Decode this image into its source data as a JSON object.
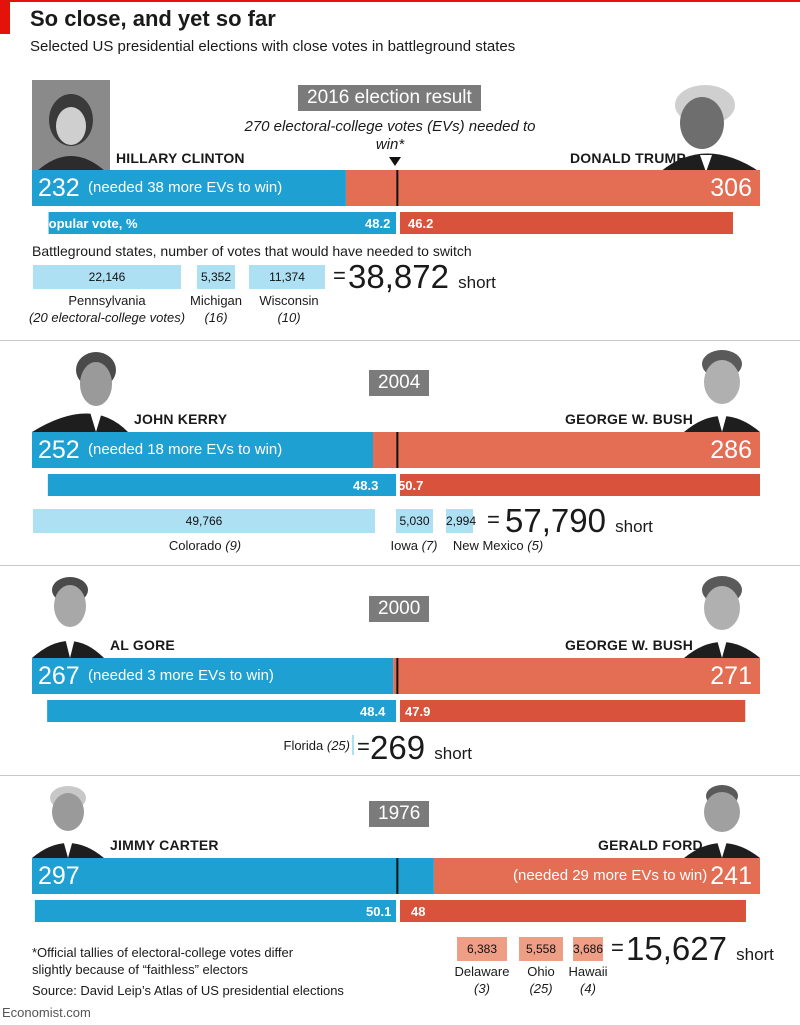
{
  "header": {
    "title": "So close, and yet so far",
    "subtitle": "Selected US presidential elections with close votes in battleground states"
  },
  "threshold_note": "270 electoral-college votes (EVs) needed to win*",
  "battleground_label": "Battleground states, number of votes that would have needed to switch",
  "colors": {
    "dem": "#1fa0d2",
    "rep_ev": "#e36e54",
    "rep_pop": "#d9533c",
    "dem_state": "#aee0f4",
    "rep_state": "#ee9e85",
    "year_box": "#7b7b7b"
  },
  "chart_data": [
    {
      "type": "bar",
      "title": "2016 election result",
      "total_ev": 538,
      "threshold": 270,
      "dem": {
        "name": "HILLARY CLINTON",
        "ev": 232,
        "ev_note": "(needed 38 more EVs to win)",
        "popular": 48.2
      },
      "rep": {
        "name": "DONALD TRUMP",
        "ev": 306,
        "ev_note": "",
        "popular": 46.2
      },
      "popular_label": "Popular vote, %",
      "states": [
        {
          "name": "Pennsylvania",
          "evs": "(20 electoral-college votes)",
          "votes": 22146,
          "votes_label": "22,146"
        },
        {
          "name": "Michigan",
          "evs": "(16)",
          "votes": 5352,
          "votes_label": "5,352"
        },
        {
          "name": "Wisconsin",
          "evs": "(10)",
          "votes": 11374,
          "votes_label": "11,374"
        }
      ],
      "equals": "=",
      "total_short": "38,872",
      "short_word": "short"
    },
    {
      "type": "bar",
      "title": "2004",
      "total_ev": 538,
      "threshold": 270,
      "dem": {
        "name": "JOHN KERRY",
        "ev": 252,
        "ev_note": "(needed 18 more EVs to win)",
        "popular": 48.3
      },
      "rep": {
        "name": "GEORGE W. BUSH",
        "ev": 286,
        "ev_note": "",
        "popular": 50.7
      },
      "popular_label": "",
      "states": [
        {
          "name": "Colorado",
          "evs": "(9)",
          "votes": 49766,
          "votes_label": "49,766"
        },
        {
          "name": "Iowa",
          "evs": "(7)",
          "votes": 5030,
          "votes_label": "5,030"
        },
        {
          "name": "New Mexico",
          "evs": "(5)",
          "votes": 2994,
          "votes_label": "2,994"
        }
      ],
      "equals": "=",
      "total_short": "57,790",
      "short_word": "short"
    },
    {
      "type": "bar",
      "title": "2000",
      "total_ev": 538,
      "threshold": 270,
      "dem": {
        "name": "AL GORE",
        "ev": 267,
        "ev_note": "(needed 3 more EVs to win)",
        "popular": 48.4
      },
      "rep": {
        "name": "GEORGE W. BUSH",
        "ev": 271,
        "ev_note": "",
        "popular": 47.9
      },
      "popular_label": "",
      "states": [
        {
          "name": "Florida",
          "evs": "(25)",
          "votes": 269,
          "votes_label": ""
        }
      ],
      "equals": "=",
      "total_short": "269",
      "short_word": "short"
    },
    {
      "type": "bar",
      "title": "1976",
      "total_ev": 538,
      "threshold": 270,
      "dem": {
        "name": "JIMMY CARTER",
        "ev": 297,
        "ev_note": "",
        "popular": 50.1
      },
      "rep": {
        "name": "GERALD FORD",
        "ev": 241,
        "ev_note": "(needed 29 more EVs to win)",
        "popular": 48.0
      },
      "popular_label": "",
      "states": [
        {
          "name": "Delaware",
          "evs": "(3)",
          "votes": 6383,
          "votes_label": "6,383"
        },
        {
          "name": "Ohio",
          "evs": "(25)",
          "votes": 5558,
          "votes_label": "5,558"
        },
        {
          "name": "Hawaii",
          "evs": "(4)",
          "votes": 3686,
          "votes_label": "3,686"
        }
      ],
      "equals": "=",
      "total_short": "15,627",
      "short_word": "short"
    }
  ],
  "footer": {
    "footnote": "*Official tallies of electoral-college votes differ slightly because of “faithless” electors",
    "source": "Source: David Leip’s Atlas of US presidential elections",
    "brand": "Economist.com"
  }
}
